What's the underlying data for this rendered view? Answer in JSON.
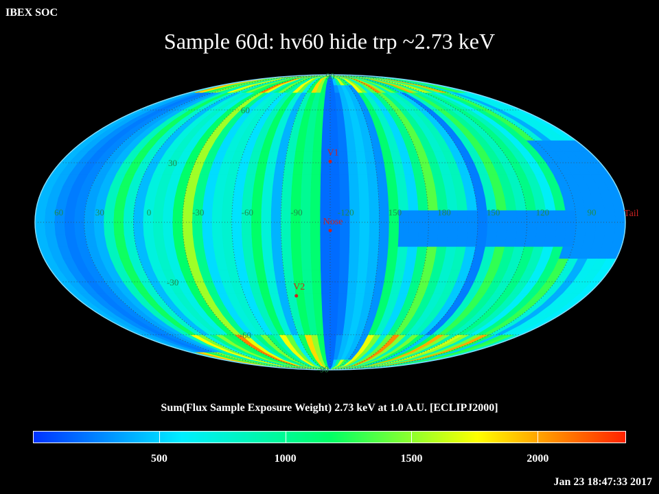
{
  "header": {
    "soc_label": "IBEX SOC",
    "title": "Sample 60d: hv60 hide trp ~2.73 keV"
  },
  "map": {
    "projection": "mollweide",
    "frame": "ECLIPJ2000",
    "latitude_labels": {
      "north": [
        "30",
        "60",
        "90"
      ],
      "south": [
        "-30",
        "-60",
        "-90"
      ]
    },
    "longitude_labels": [
      "60",
      "30",
      "0",
      "-30",
      "-60",
      "-90",
      "-120",
      "150",
      "180",
      "150",
      "120",
      "90"
    ],
    "markers": [
      {
        "label": "V1",
        "lon_offset_deg": 0,
        "lat_deg": 35
      },
      {
        "label": "Nose",
        "lon_offset_deg": 0,
        "lat_deg": 0
      },
      {
        "label": "V2",
        "lon_offset_deg": -23,
        "lat_deg": -33
      },
      {
        "label": "Tail",
        "lon_offset_deg": 180,
        "lat_deg": 0
      }
    ],
    "marker_color": "#cc2222",
    "grid_label_color": "#1f8a4c",
    "data_range": [
      0,
      2350
    ]
  },
  "colorbar": {
    "title": "Sum(Flux Sample Exposure Weight)  2.73 keV at 1.0 A.U. [ECLIPJ2000]",
    "ticks": [
      500,
      1000,
      1500,
      2000
    ],
    "tick_labels": [
      "500",
      "1000",
      "1500",
      "2000"
    ],
    "range": [
      0,
      2350
    ],
    "colors": [
      "#0033ff",
      "#00eeff",
      "#00ff66",
      "#ffff00",
      "#ff2200"
    ]
  },
  "footer": {
    "timestamp": "Jan 23 18:47:33 2017"
  }
}
